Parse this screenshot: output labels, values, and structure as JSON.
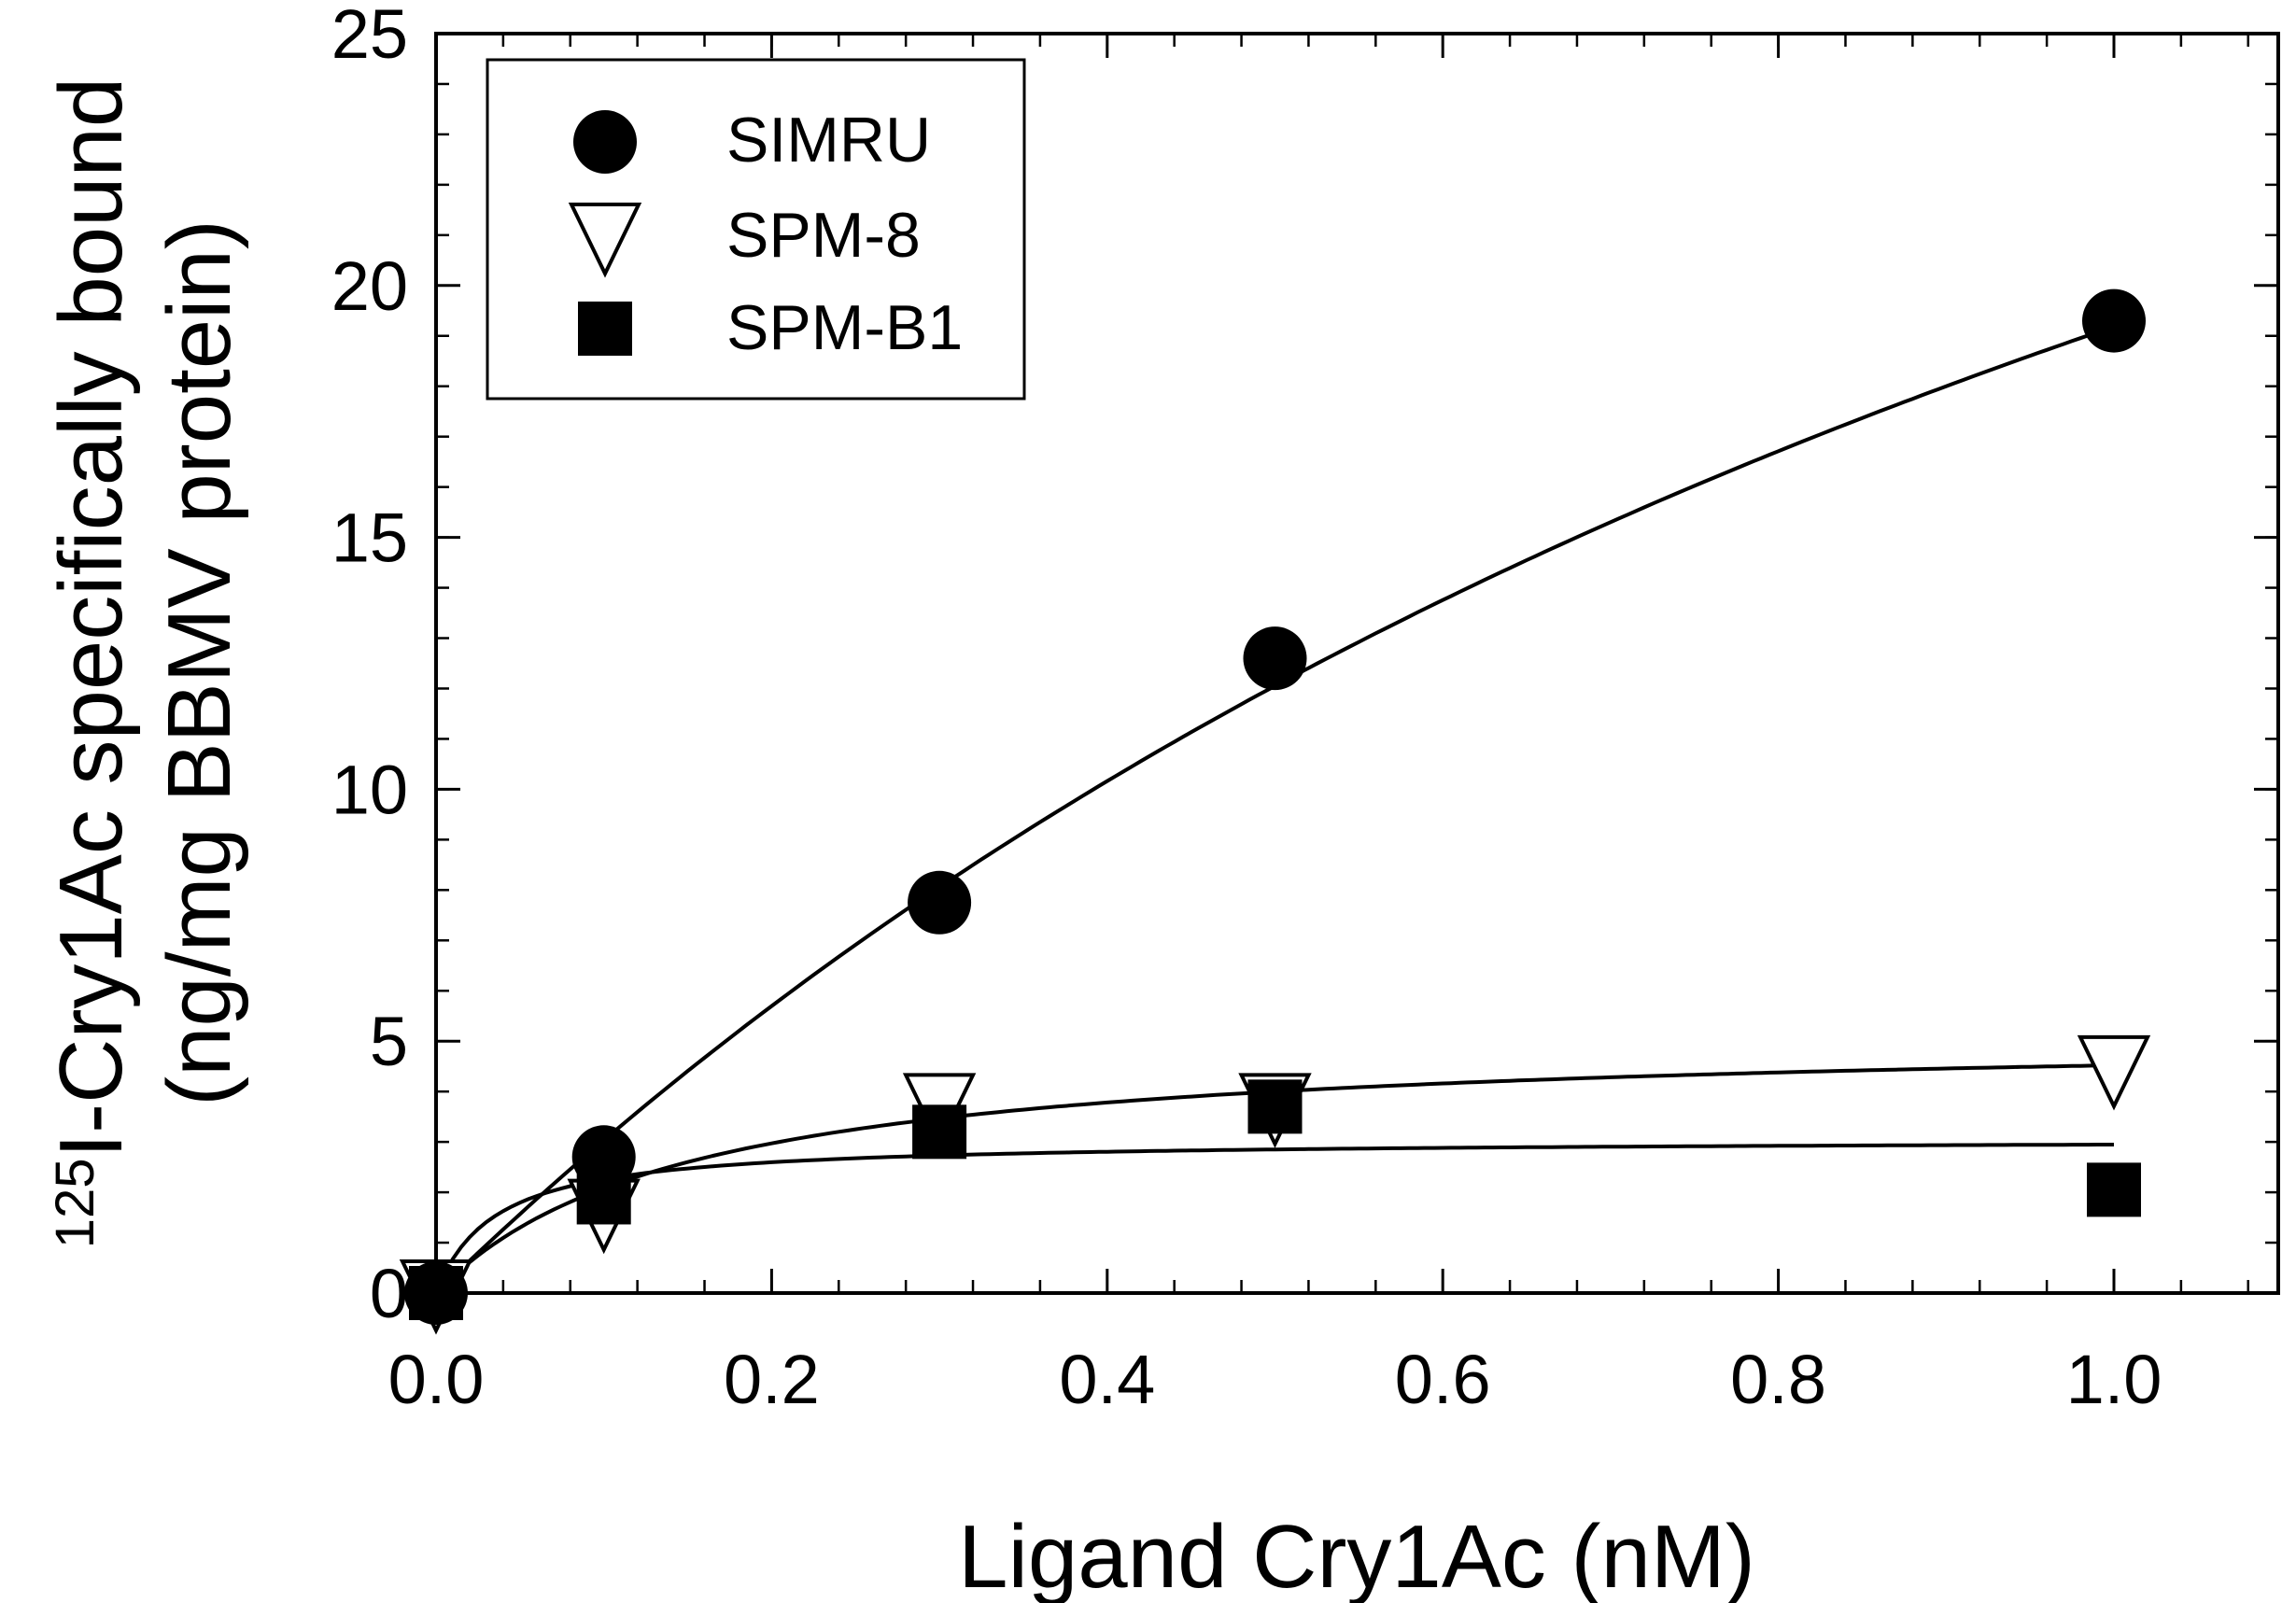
{
  "chart_data": {
    "type": "scatter",
    "title": "",
    "xlabel": "Ligand Cry1Ac (nM)",
    "ylabel": {
      "superscript": "125",
      "line1": "I-Cry1Ac specifically bound",
      "line2": "(ng/mg BBMV protein)"
    },
    "xlim": [
      0.0,
      1.1
    ],
    "ylim": [
      0,
      25
    ],
    "xticks": [
      0.0,
      0.2,
      0.4,
      0.6,
      0.8,
      1.0
    ],
    "xtick_labels": [
      "0.0",
      "0.2",
      "0.4",
      "0.6",
      "0.8",
      "1.0"
    ],
    "yticks": [
      0,
      5,
      10,
      15,
      20,
      25
    ],
    "ytick_labels": [
      "0",
      "5",
      "10",
      "15",
      "20",
      "25"
    ],
    "x_minor_step": 0.04,
    "y_minor_step": 1,
    "legend_position": "top-left",
    "series": [
      {
        "name": "SIMRU",
        "marker": "circle-filled",
        "x": [
          0.0,
          0.1,
          0.3,
          0.5,
          1.0
        ],
        "y": [
          0.0,
          2.7,
          7.75,
          12.6,
          19.3
        ],
        "fit": {
          "model": "hyperbola",
          "bmax": 47.0,
          "kd": 1.45
        }
      },
      {
        "name": "SPM-8",
        "marker": "triangle-down-open",
        "x": [
          0.0,
          0.1,
          0.3,
          0.5,
          1.0
        ],
        "y": [
          0.0,
          1.6,
          3.7,
          3.7,
          4.45
        ],
        "fit": {
          "model": "hyperbola",
          "bmax": 5.2,
          "kd": 0.15
        }
      },
      {
        "name": "SPM-B1",
        "marker": "square-filled",
        "x": [
          0.0,
          0.1,
          0.3,
          0.5,
          1.0
        ],
        "y": [
          0.0,
          1.9,
          3.2,
          3.7,
          2.05
        ],
        "fit": {
          "model": "hyperbola",
          "bmax": 3.05,
          "kd": 0.035
        }
      }
    ]
  }
}
